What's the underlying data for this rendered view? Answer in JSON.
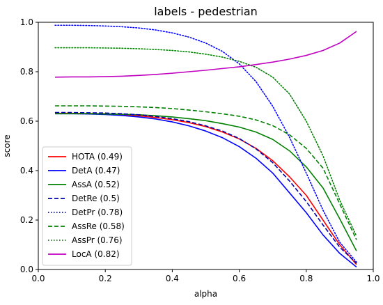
{
  "chart_data": {
    "type": "line",
    "title": "labels - pedestrian",
    "xlabel": "alpha",
    "ylabel": "score",
    "xlim": [
      0.0,
      1.0
    ],
    "ylim": [
      0.0,
      1.0
    ],
    "xticks": [
      0.0,
      0.2,
      0.4,
      0.6,
      0.8,
      1.0
    ],
    "yticks": [
      0.0,
      0.2,
      0.4,
      0.6,
      0.8,
      1.0
    ],
    "x_tick_labels": [
      "0.0",
      "0.2",
      "0.4",
      "0.6",
      "0.8",
      "1.0"
    ],
    "y_tick_labels": [
      "0.0",
      "0.2",
      "0.4",
      "0.6",
      "0.8",
      "1.0"
    ],
    "grid": false,
    "legend_position": "lower-left",
    "x": [
      0.05,
      0.1,
      0.15,
      0.2,
      0.25,
      0.3,
      0.35,
      0.4,
      0.45,
      0.5,
      0.55,
      0.6,
      0.65,
      0.7,
      0.75,
      0.8,
      0.85,
      0.9,
      0.95
    ],
    "series": [
      {
        "name": "HOTA (0.49)",
        "color": "#ff0000",
        "dash": "solid",
        "values": [
          0.632,
          0.632,
          0.631,
          0.63,
          0.627,
          0.622,
          0.615,
          0.606,
          0.594,
          0.578,
          0.556,
          0.528,
          0.49,
          0.44,
          0.375,
          0.3,
          0.2,
          0.1,
          0.02
        ]
      },
      {
        "name": "DetA (0.47)",
        "color": "#0000ff",
        "dash": "solid",
        "values": [
          0.63,
          0.63,
          0.629,
          0.627,
          0.623,
          0.617,
          0.609,
          0.597,
          0.581,
          0.56,
          0.533,
          0.497,
          0.45,
          0.39,
          0.31,
          0.23,
          0.14,
          0.065,
          0.01
        ]
      },
      {
        "name": "AssA (0.52)",
        "color": "#008000",
        "dash": "solid",
        "values": [
          0.63,
          0.63,
          0.63,
          0.629,
          0.628,
          0.626,
          0.622,
          0.617,
          0.61,
          0.602,
          0.59,
          0.576,
          0.556,
          0.526,
          0.48,
          0.415,
          0.33,
          0.205,
          0.075
        ]
      },
      {
        "name": "DetRe (0.5)",
        "color": "#0000aa",
        "dash": "dashed",
        "values": [
          0.635,
          0.635,
          0.634,
          0.633,
          0.63,
          0.626,
          0.619,
          0.61,
          0.598,
          0.581,
          0.56,
          0.53,
          0.488,
          0.432,
          0.358,
          0.275,
          0.18,
          0.09,
          0.025
        ]
      },
      {
        "name": "DetPr (0.78)",
        "color": "#0000ff",
        "dash": "dotted",
        "values": [
          0.988,
          0.988,
          0.987,
          0.985,
          0.982,
          0.977,
          0.969,
          0.957,
          0.94,
          0.916,
          0.882,
          0.832,
          0.76,
          0.66,
          0.535,
          0.39,
          0.24,
          0.11,
          0.03
        ]
      },
      {
        "name": "AssRe (0.58)",
        "color": "#008000",
        "dash": "dashed",
        "values": [
          0.662,
          0.662,
          0.662,
          0.661,
          0.66,
          0.658,
          0.655,
          0.651,
          0.645,
          0.638,
          0.63,
          0.62,
          0.605,
          0.582,
          0.545,
          0.49,
          0.41,
          0.265,
          0.12
        ]
      },
      {
        "name": "AssPr (0.76)",
        "color": "#008000",
        "dash": "dotted",
        "values": [
          0.897,
          0.897,
          0.897,
          0.896,
          0.895,
          0.893,
          0.89,
          0.886,
          0.88,
          0.871,
          0.859,
          0.842,
          0.818,
          0.778,
          0.71,
          0.6,
          0.46,
          0.28,
          0.135
        ]
      },
      {
        "name": "LocA (0.82)",
        "color": "#c000c0",
        "dash": "solid",
        "values": [
          0.778,
          0.779,
          0.779,
          0.78,
          0.782,
          0.785,
          0.789,
          0.794,
          0.8,
          0.806,
          0.813,
          0.82,
          0.829,
          0.839,
          0.851,
          0.866,
          0.886,
          0.916,
          0.963
        ]
      }
    ]
  }
}
